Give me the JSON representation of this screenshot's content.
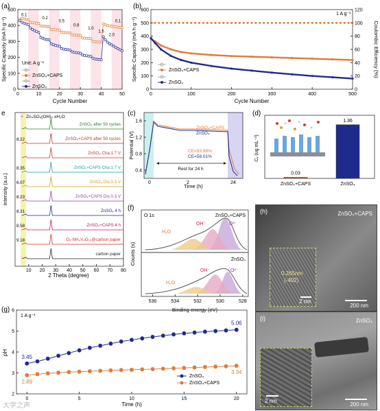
{
  "chart_data": [
    {
      "id": "a",
      "panel_letter": "(a)",
      "type": "line",
      "ylabel": "Specific Capacity (mA h g⁻¹)",
      "xlabel": "Cycle Number",
      "xlim": [
        0,
        50
      ],
      "ylim": [
        0,
        500
      ],
      "xticks": [
        0,
        10,
        20,
        30,
        40,
        50
      ],
      "yticks": [
        0,
        100,
        200,
        300,
        400,
        500
      ],
      "unit_text": "Unit: A g⁻¹",
      "rate_labels": [
        "0.1",
        "0.2",
        "0.5",
        "0.8",
        "1.0",
        "1.5",
        "2.0",
        "0.1"
      ],
      "series": [
        {
          "name": "ZnSO₄+CAPS",
          "color": "#e07b39",
          "x": [
            1,
            2,
            3,
            4,
            5,
            6,
            7,
            8,
            9,
            10,
            11,
            12,
            13,
            14,
            15,
            16,
            17,
            18,
            19,
            20,
            21,
            22,
            23,
            24,
            25,
            26,
            27,
            28,
            29,
            30,
            31,
            32,
            33,
            34,
            35,
            36,
            37,
            38,
            39,
            40,
            41,
            42,
            43,
            44,
            45,
            46,
            47,
            48,
            49,
            50
          ],
          "values": [
            440,
            445,
            442,
            438,
            436,
            420,
            418,
            416,
            415,
            414,
            398,
            396,
            395,
            394,
            393,
            375,
            374,
            373,
            372,
            371,
            358,
            357,
            356,
            355,
            354,
            342,
            341,
            340,
            339,
            338,
            322,
            321,
            320,
            319,
            318,
            300,
            298,
            297,
            296,
            295,
            410,
            405,
            400,
            398,
            396,
            394,
            392,
            390,
            388,
            386
          ]
        },
        {
          "name": "ZnSO₄",
          "color": "#1f2a8c",
          "x": [
            1,
            2,
            3,
            4,
            5,
            6,
            7,
            8,
            9,
            10,
            11,
            12,
            13,
            14,
            15,
            16,
            17,
            18,
            19,
            20,
            21,
            22,
            23,
            24,
            25,
            26,
            27,
            28,
            29,
            30,
            31,
            32,
            33,
            34,
            35,
            36,
            37,
            38,
            39,
            40,
            41,
            42,
            43,
            44,
            45,
            46,
            47,
            48,
            49,
            50
          ],
          "values": [
            430,
            420,
            415,
            410,
            405,
            385,
            375,
            368,
            362,
            358,
            325,
            320,
            315,
            312,
            310,
            285,
            280,
            276,
            273,
            270,
            255,
            252,
            250,
            248,
            246,
            235,
            232,
            230,
            228,
            226,
            215,
            212,
            210,
            208,
            206,
            195,
            190,
            188,
            186,
            185,
            330,
            310,
            295,
            285,
            278,
            270,
            262,
            255,
            248,
            242
          ]
        }
      ]
    },
    {
      "id": "b",
      "panel_letter": "(b)",
      "type": "scatter",
      "xlabel": "Cycle Number",
      "ylabel": "Specific Capacity (mA h g⁻¹)",
      "y2label": "Coulombic Efficiency (%)",
      "xlim": [
        0,
        500
      ],
      "ylim": [
        0,
        600
      ],
      "y2lim": [
        0,
        120
      ],
      "xticks": [
        0,
        100,
        200,
        300,
        400,
        500
      ],
      "yticks": [
        0,
        100,
        200,
        300,
        400,
        500,
        600
      ],
      "y2ticks": [
        0,
        20,
        40,
        60,
        80,
        100,
        120
      ],
      "rate_text": "1 A g⁻¹",
      "ce_level": 100,
      "series": [
        {
          "name": "ZnSO₄+CAPS",
          "color": "#e07b39",
          "x": [
            0,
            10,
            25,
            50,
            75,
            100,
            150,
            200,
            250,
            300,
            350,
            400,
            450,
            500
          ],
          "values": [
            380,
            360,
            330,
            300,
            280,
            270,
            258,
            250,
            245,
            240,
            235,
            230,
            225,
            220
          ]
        },
        {
          "name": "ZnSO₄",
          "color": "#1f2a8c",
          "x": [
            0,
            10,
            25,
            50,
            75,
            100,
            150,
            200,
            250,
            300,
            350,
            400,
            450,
            500
          ],
          "values": [
            385,
            350,
            300,
            250,
            220,
            200,
            175,
            155,
            140,
            125,
            112,
            100,
            90,
            80
          ]
        }
      ]
    },
    {
      "id": "e",
      "panel_letter": "e",
      "type": "line",
      "xlabel": "2 Theta (degree)",
      "ylabel": "Intensity (a.u.)",
      "xlim": [
        0,
        80
      ],
      "xticks": [
        10,
        20,
        30,
        40,
        50,
        60,
        70,
        80
      ],
      "legend_marker_text": "Zn₄SO₄(OH)₆·xH₂O",
      "traces": [
        {
          "label": "ZnSO₄ after 50 cycles",
          "color": "#2e7d32",
          "peak_value": ""
        },
        {
          "label": "ZnSO₄+CAPS after 50 cycles",
          "color": "#c0392b",
          "peak_value": "8.22"
        },
        {
          "label": "ZnSO₄ Cha.1.7 V",
          "color": "#c0392b",
          "peak_value": ""
        },
        {
          "label": "ZnSO₄+CAPS Cha.1.7 V",
          "color": "#1b9e9e",
          "peak_value": "8.35"
        },
        {
          "label": "ZnSO₄ Dis.0.3 V",
          "color": "#d4a017",
          "peak_value": "6.07"
        },
        {
          "label": "ZnSO₄+CAPS Dis.0.3 V",
          "color": "#8e44ad",
          "peak_value": "8.23"
        },
        {
          "label": "ZnSO₄ 4 h",
          "color": "#1f2a8c",
          "peak_value": "8.31"
        },
        {
          "label": "ZnSO₄+CAPS 4 h",
          "color": "#c2185b",
          "peak_value": "8.58"
        },
        {
          "label": "O₃-NH₄V₄O₁₀@carbon paper",
          "color": "#c0392b",
          "peak_value": "9.18"
        },
        {
          "label": "carbon paper",
          "color": "#222222",
          "peak_value": ""
        }
      ]
    },
    {
      "id": "c",
      "panel_letter": "(c)",
      "type": "line",
      "xlabel": "Time (h)",
      "ylabel": "Potential (V)",
      "xticks": [
        0,
        2,
        24
      ],
      "yticks": [
        0.4,
        0.8,
        1.2,
        1.6
      ],
      "annotations": [
        "CE=93.98%",
        "CE=58.01%",
        "Rest for 24 h"
      ],
      "series": [
        {
          "name": "ZnSO₄+CAPS",
          "color": "#e07b39"
        },
        {
          "name": "ZnSO₄",
          "color": "#1f2a8c"
        }
      ]
    },
    {
      "id": "d",
      "panel_letter": "(d)",
      "type": "bar",
      "ylabel": "Cᵥ (ug mL⁻¹)",
      "categories": [
        "ZnSO₄+CAPS",
        "ZnSO₄"
      ],
      "values": [
        0.03,
        1.36
      ],
      "value_labels": [
        "0.03",
        "1.36"
      ],
      "ylim": [
        0,
        1.6
      ],
      "colors": [
        "#e07b39",
        "#1f2a8c"
      ]
    },
    {
      "id": "f",
      "panel_letter": "(f)",
      "type": "line",
      "xlabel": "Binding energy (eV)",
      "ylabel": "Counts (s)",
      "xticks": [
        536,
        534,
        532,
        530,
        528
      ],
      "core_level": "O 1s",
      "subpanels": [
        {
          "sample": "ZnSO₄+CAPS",
          "peaks": [
            "H₂O",
            "OH⁻",
            "O²⁻"
          ]
        },
        {
          "sample": "ZnSO₄",
          "peaks": [
            "H₂O",
            "OH⁻",
            "O²⁻"
          ]
        }
      ]
    },
    {
      "id": "g",
      "panel_letter": "(g)",
      "type": "line",
      "xlabel": "Time (h)",
      "ylabel": "pH",
      "xlim": [
        0,
        20
      ],
      "ylim": [
        2,
        6
      ],
      "xticks": [
        0,
        5,
        10,
        15,
        20
      ],
      "yticks": [
        2,
        3,
        4,
        5,
        6
      ],
      "rate_text": "1 A g⁻¹",
      "series": [
        {
          "name": "ZnSO₄",
          "color": "#1f2a8c",
          "x": [
            0,
            1,
            2,
            3,
            4,
            5,
            6,
            7,
            8,
            9,
            10,
            11,
            12,
            13,
            14,
            15,
            16,
            17,
            18,
            19,
            20
          ],
          "values": [
            3.45,
            3.55,
            3.68,
            3.82,
            3.95,
            4.08,
            4.2,
            4.3,
            4.4,
            4.5,
            4.58,
            4.65,
            4.72,
            4.78,
            4.84,
            4.89,
            4.93,
            4.97,
            5.0,
            5.03,
            5.06
          ],
          "start_label": "3.45",
          "end_label": "5.06"
        },
        {
          "name": "ZnSO₄+CAPS",
          "color": "#e07b39",
          "x": [
            0,
            1,
            2,
            3,
            4,
            5,
            6,
            7,
            8,
            9,
            10,
            11,
            12,
            13,
            14,
            15,
            16,
            17,
            18,
            19,
            20
          ],
          "values": [
            2.89,
            2.94,
            2.98,
            3.01,
            3.04,
            3.06,
            3.08,
            3.1,
            3.12,
            3.14,
            3.15,
            3.17,
            3.18,
            3.2,
            3.22,
            3.24,
            3.26,
            3.28,
            3.3,
            3.32,
            3.34
          ],
          "start_label": "2.89",
          "end_label": "3.34"
        }
      ]
    }
  ],
  "tem": [
    {
      "panel_letter": "(h)",
      "sample": "ZnSO₄+CAPS",
      "scale_main": "200 nm",
      "scale_inset": "2 nm",
      "lattice_value": "0.265nm",
      "lattice_plane": "(-402)"
    },
    {
      "panel_letter": "(i)",
      "sample": "ZnSO₄",
      "scale_main": "200 nm",
      "scale_inset": "2 nm"
    }
  ],
  "watermark": "大学之声"
}
